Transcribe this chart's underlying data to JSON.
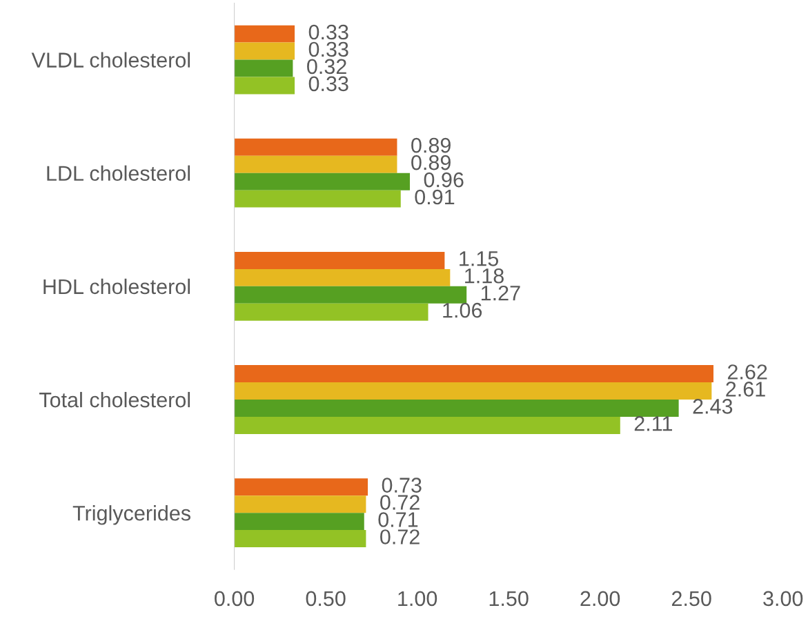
{
  "chart_data": {
    "type": "bar",
    "orientation": "horizontal",
    "categories": [
      "VLDL cholesterol",
      "LDL cholesterol",
      "HDL cholesterol",
      "Total cholesterol",
      "Triglycerides"
    ],
    "series": [
      {
        "color": "#e8681a",
        "values": [
          0.33,
          0.89,
          1.15,
          2.62,
          0.73
        ],
        "value_labels": [
          "0.33",
          "0.89",
          "1.15",
          "2.62",
          "0.73"
        ]
      },
      {
        "color": "#e6b820",
        "values": [
          0.33,
          0.89,
          1.18,
          2.61,
          0.72
        ],
        "value_labels": [
          "0.33",
          "0.89",
          "1.18",
          "2.61",
          "0.72"
        ]
      },
      {
        "color": "#56a022",
        "values": [
          0.32,
          0.96,
          1.27,
          2.43,
          0.71
        ],
        "value_labels": [
          "0.32",
          "0.96",
          "1.27",
          "2.43",
          "0.71"
        ]
      },
      {
        "color": "#93c225",
        "values": [
          0.33,
          0.91,
          1.06,
          2.11,
          0.72
        ],
        "value_labels": [
          "0.33",
          "0.91",
          "1.06",
          "2.11",
          "0.72"
        ]
      }
    ],
    "xlim": [
      0,
      3
    ],
    "xticks": [
      {
        "value": 0,
        "label": "0.00"
      },
      {
        "value": 0.5,
        "label": "0.50"
      },
      {
        "value": 1,
        "label": "1.00"
      },
      {
        "value": 1.5,
        "label": "1.50"
      },
      {
        "value": 2,
        "label": "2.00"
      },
      {
        "value": 2.5,
        "label": "2.50"
      },
      {
        "value": 3,
        "label": "3.00"
      }
    ],
    "grid": false,
    "legend": false
  }
}
